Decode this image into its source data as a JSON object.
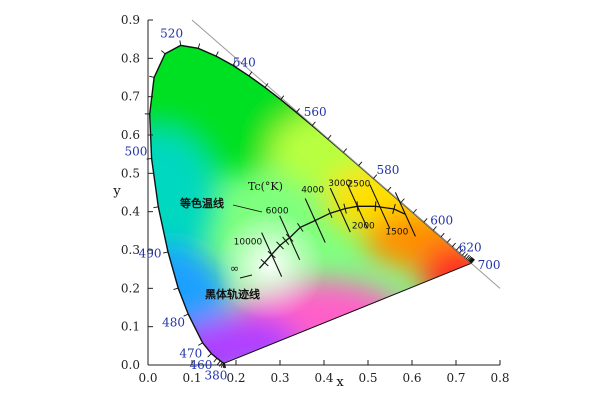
{
  "chart_data": {
    "type": "chromaticity-diagram",
    "xlabel": "x",
    "ylabel": "y",
    "xlim": [
      0.0,
      0.8
    ],
    "ylim": [
      0.0,
      0.9
    ],
    "x_ticks": [
      "0.0",
      "0.1",
      "0.2",
      "0.3",
      "0.4",
      "0.5",
      "0.6",
      "0.7",
      "0.8"
    ],
    "y_ticks": [
      "0.0",
      "0.1",
      "0.2",
      "0.3",
      "0.4",
      "0.5",
      "0.6",
      "0.7",
      "0.8",
      "0.9"
    ],
    "spectral_locus": [
      [
        0.1741,
        0.005
      ],
      [
        0.1738,
        0.0049
      ],
      [
        0.1733,
        0.0048
      ],
      [
        0.1726,
        0.0048
      ],
      [
        0.1714,
        0.0051
      ],
      [
        0.1689,
        0.0069
      ],
      [
        0.1644,
        0.0109
      ],
      [
        0.1566,
        0.0177
      ],
      [
        0.144,
        0.0297
      ],
      [
        0.1241,
        0.0578
      ],
      [
        0.0913,
        0.1327
      ],
      [
        0.0687,
        0.2007
      ],
      [
        0.0454,
        0.295
      ],
      [
        0.0235,
        0.4127
      ],
      [
        0.0082,
        0.5384
      ],
      [
        0.0039,
        0.6548
      ],
      [
        0.0139,
        0.7502
      ],
      [
        0.0389,
        0.812
      ],
      [
        0.0743,
        0.8338
      ],
      [
        0.1142,
        0.8262
      ],
      [
        0.1547,
        0.8059
      ],
      [
        0.1929,
        0.7816
      ],
      [
        0.2296,
        0.7543
      ],
      [
        0.2658,
        0.7243
      ],
      [
        0.3016,
        0.6923
      ],
      [
        0.3373,
        0.6589
      ],
      [
        0.3731,
        0.6245
      ],
      [
        0.4087,
        0.5896
      ],
      [
        0.4441,
        0.5547
      ],
      [
        0.4788,
        0.5202
      ],
      [
        0.5125,
        0.4866
      ],
      [
        0.5448,
        0.4544
      ],
      [
        0.5752,
        0.4242
      ],
      [
        0.6029,
        0.3965
      ],
      [
        0.627,
        0.3725
      ],
      [
        0.6482,
        0.3514
      ],
      [
        0.6658,
        0.334
      ],
      [
        0.6801,
        0.3197
      ],
      [
        0.6915,
        0.3083
      ],
      [
        0.7006,
        0.2993
      ],
      [
        0.7079,
        0.292
      ],
      [
        0.714,
        0.2859
      ],
      [
        0.719,
        0.2809
      ],
      [
        0.723,
        0.277
      ],
      [
        0.726,
        0.274
      ],
      [
        0.7283,
        0.2717
      ],
      [
        0.73,
        0.27
      ],
      [
        0.7311,
        0.2689
      ],
      [
        0.732,
        0.268
      ],
      [
        0.7327,
        0.2673
      ],
      [
        0.7334,
        0.2666
      ],
      [
        0.734,
        0.266
      ],
      [
        0.7344,
        0.2656
      ],
      [
        0.7346,
        0.2654
      ],
      [
        0.7347,
        0.2653
      ]
    ],
    "wavelength_labels": [
      {
        "text": "520",
        "x": 0.0743,
        "y": 0.8338
      },
      {
        "text": "540",
        "x": 0.2296,
        "y": 0.7543
      },
      {
        "text": "560",
        "x": 0.3731,
        "y": 0.6245
      },
      {
        "text": "580",
        "x": 0.5125,
        "y": 0.4866
      },
      {
        "text": "600",
        "x": 0.627,
        "y": 0.3725
      },
      {
        "text": "620",
        "x": 0.6915,
        "y": 0.3083
      },
      {
        "text": "700",
        "x": 0.7347,
        "y": 0.2653
      },
      {
        "text": "500",
        "x": 0.0082,
        "y": 0.5384
      },
      {
        "text": "490",
        "x": 0.0454,
        "y": 0.295
      },
      {
        "text": "480",
        "x": 0.0913,
        "y": 0.1327
      },
      {
        "text": "470",
        "x": 0.1241,
        "y": 0.0578
      },
      {
        "text": "460",
        "x": 0.144,
        "y": 0.0297
      },
      {
        "text": "380",
        "x": 0.1741,
        "y": 0.005
      }
    ],
    "planckian_locus": [
      [
        0.253,
        0.252
      ],
      [
        0.265,
        0.267
      ],
      [
        0.281,
        0.288
      ],
      [
        0.3,
        0.312
      ],
      [
        0.313,
        0.324
      ],
      [
        0.322,
        0.332
      ],
      [
        0.346,
        0.359
      ],
      [
        0.38,
        0.377
      ],
      [
        0.414,
        0.396
      ],
      [
        0.448,
        0.408
      ],
      [
        0.476,
        0.414
      ],
      [
        0.517,
        0.414
      ],
      [
        0.559,
        0.407
      ],
      [
        0.585,
        0.393
      ]
    ],
    "isotherms": [
      {
        "label": "10000",
        "x": 0.281,
        "y": 0.288
      },
      {
        "label": "6000",
        "x": 0.322,
        "y": 0.332
      },
      {
        "label": "4000",
        "x": 0.38,
        "y": 0.377
      },
      {
        "label": "3000",
        "x": 0.437,
        "y": 0.404
      },
      {
        "label": "2500",
        "x": 0.476,
        "y": 0.414
      },
      {
        "label": "2000",
        "x": 0.527,
        "y": 0.413
      },
      {
        "label": "1500",
        "x": 0.585,
        "y": 0.393
      }
    ],
    "infinity_point": {
      "label": "∞",
      "x": 0.24,
      "y": 0.234
    },
    "tc_label": "Tc(°K)",
    "annotations": [
      {
        "text": "等色温线"
      },
      {
        "text": "黑体轨迹线"
      }
    ],
    "diagonal_line": [
      [
        0.1,
        0.9
      ],
      [
        0.8,
        0.2
      ]
    ],
    "grid": false
  }
}
